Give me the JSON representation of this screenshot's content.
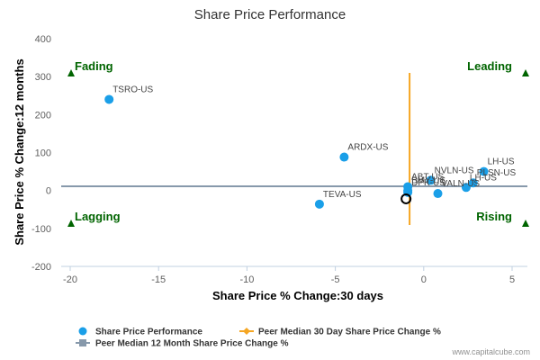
{
  "chart_data": {
    "type": "scatter",
    "title": "Share Price Performance",
    "xlabel": "Share Price % Change:30 days",
    "ylabel": "Share Price % Change:12 months",
    "xlim": [
      -20,
      5
    ],
    "ylim": [
      -200,
      400
    ],
    "x_ticks": [
      -20,
      -15,
      -10,
      -5,
      0,
      5
    ],
    "y_ticks": [
      -200,
      -100,
      0,
      100,
      200,
      300,
      400
    ],
    "points": [
      {
        "label": "TSRO-US",
        "x": -17.8,
        "y": 240
      },
      {
        "label": "ARDX-US",
        "x": -4.5,
        "y": 88
      },
      {
        "label": "TEVA-US",
        "x": -5.9,
        "y": -36
      },
      {
        "label": "NVLN-US",
        "x": 0.4,
        "y": 27
      },
      {
        "label": "LH-US",
        "x": 3.4,
        "y": 50
      },
      {
        "label": "PLSN-US",
        "x": 2.8,
        "y": 20
      },
      {
        "label": "LH-US",
        "x": 2.4,
        "y": 8
      },
      {
        "label": "ABT-US",
        "x": -0.9,
        "y": 10
      },
      {
        "label": "BMY-US",
        "x": -0.9,
        "y": 0
      },
      {
        "label": "DPK-US",
        "x": -0.9,
        "y": -5
      },
      {
        "label": "VALN-US",
        "x": 0.8,
        "y": -8
      }
    ],
    "highlight_point": {
      "x": -1.0,
      "y": -22
    },
    "peer_median_30d": -0.8,
    "peer_median_12m": 11,
    "quadrants": {
      "top_left": "Fading",
      "top_right": "Leading",
      "bottom_left": "Lagging",
      "bottom_right": "Rising"
    },
    "legend": [
      {
        "name": "Share Price Performance",
        "color": "#1a9fe8",
        "marker": "circle"
      },
      {
        "name": "Peer Median 30 Day Share Price Change %",
        "color": "#f5a623",
        "marker": "diamond"
      },
      {
        "name": "Peer Median 12 Month Share Price Change %",
        "color": "#8799ab",
        "marker": "square"
      }
    ],
    "legend_placement": "bottom",
    "grid": false,
    "colors": {
      "points": "#1a9fe8",
      "median_30d": "#f5a623",
      "median_12m": "#8799ab",
      "quadrant_text": "#006400"
    }
  },
  "credit": "www.capitalcube.com"
}
